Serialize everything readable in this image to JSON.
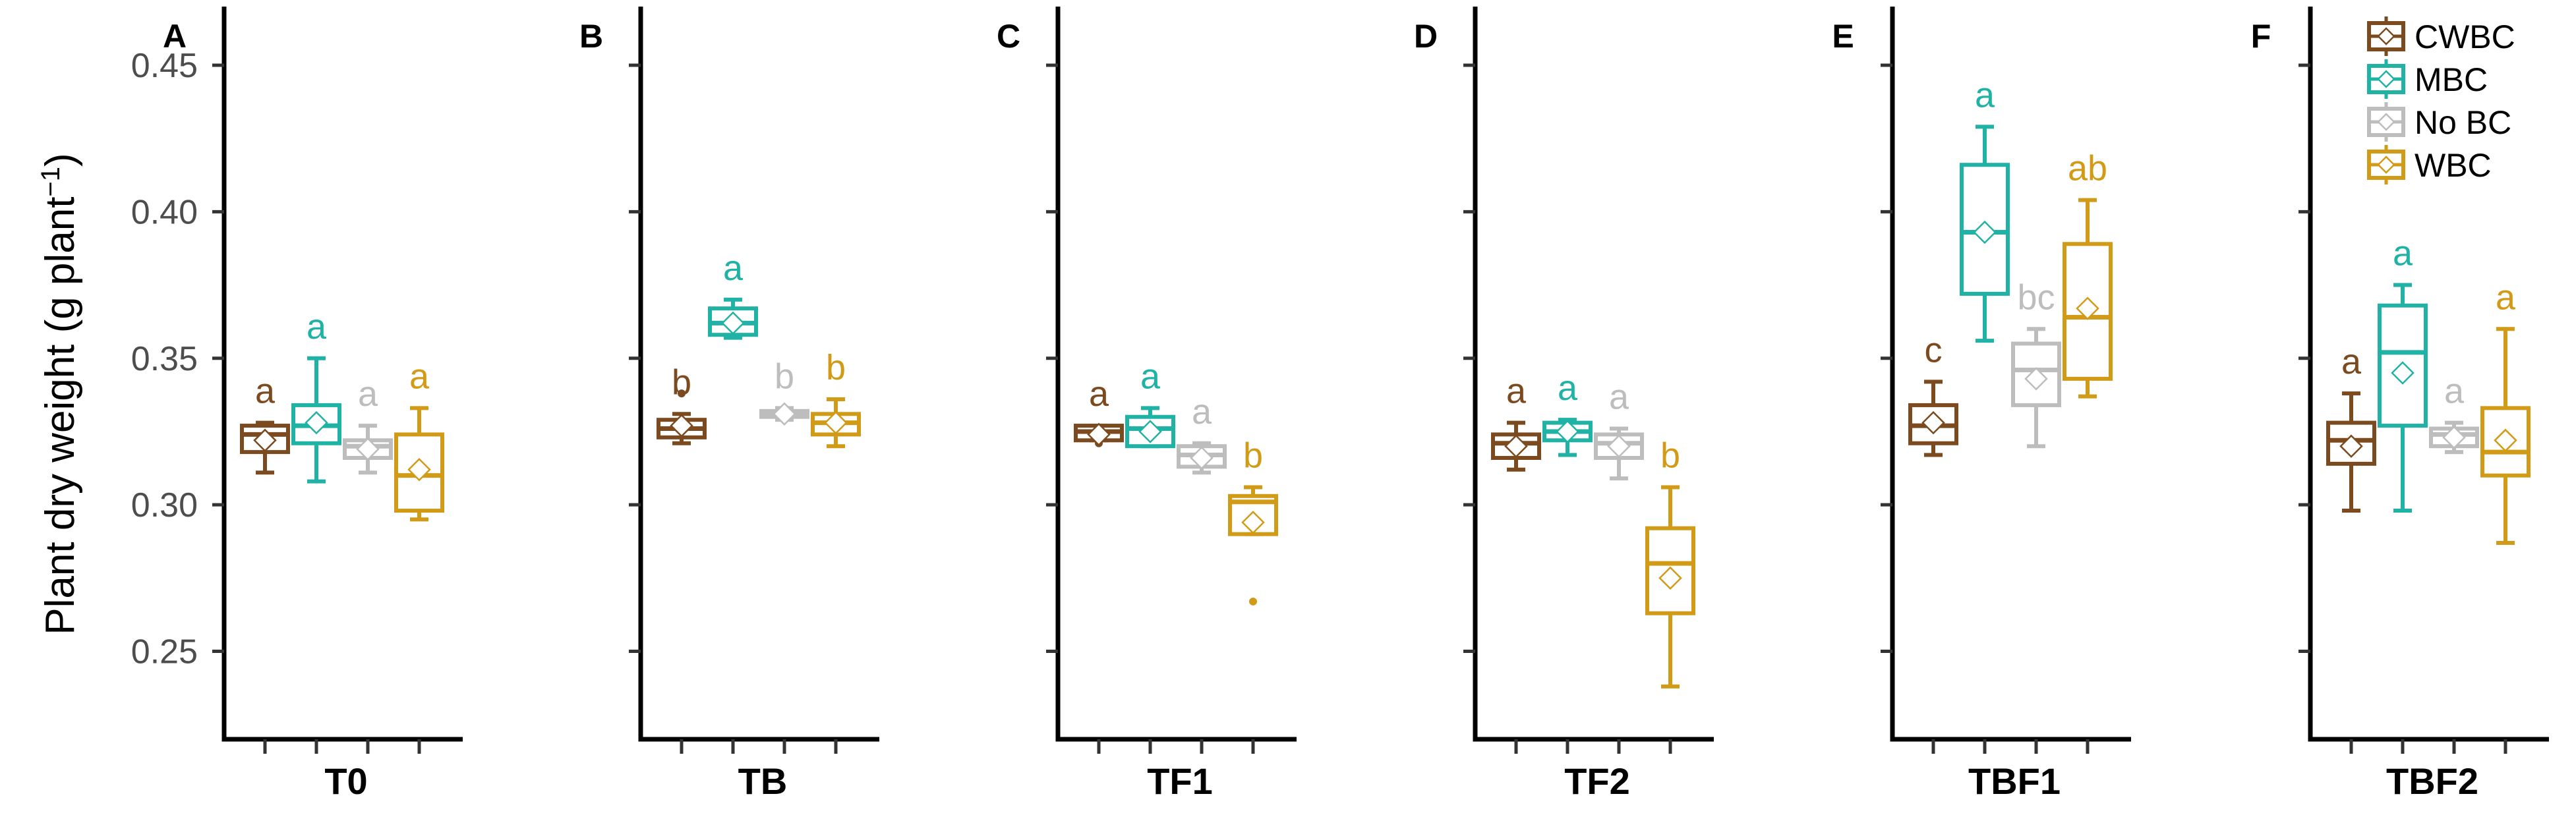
{
  "chart_data": {
    "type": "box",
    "ylabel": "Plant dry weight (g plant",
    "ylabel_exponent": "−1",
    "ylabel_close": ")",
    "ylim": [
      0.22,
      0.47
    ],
    "yticks": [
      0.25,
      0.3,
      0.35,
      0.4,
      0.45
    ],
    "ytick_labels": [
      "0.25",
      "0.30",
      "0.35",
      "0.40",
      "0.45"
    ],
    "treatments": [
      {
        "name": "CWBC",
        "color": "#7b4a1f"
      },
      {
        "name": "MBC",
        "color": "#21b2a6"
      },
      {
        "name": "No BC",
        "color": "#bdbdbd"
      },
      {
        "name": "WBC",
        "color": "#d19b17"
      }
    ],
    "panels": [
      {
        "letter": "A",
        "label": "T0",
        "boxes": [
          {
            "treatment": "CWBC",
            "min": 0.311,
            "q1": 0.318,
            "median": 0.324,
            "q3": 0.327,
            "max": 0.328,
            "mean": 0.322,
            "sig": "a",
            "outliers": []
          },
          {
            "treatment": "MBC",
            "min": 0.308,
            "q1": 0.321,
            "median": 0.327,
            "q3": 0.334,
            "max": 0.35,
            "mean": 0.328,
            "sig": "a",
            "outliers": []
          },
          {
            "treatment": "No BC",
            "min": 0.311,
            "q1": 0.316,
            "median": 0.32,
            "q3": 0.322,
            "max": 0.327,
            "mean": 0.319,
            "sig": "a",
            "outliers": []
          },
          {
            "treatment": "WBC",
            "min": 0.295,
            "q1": 0.298,
            "median": 0.31,
            "q3": 0.324,
            "max": 0.333,
            "mean": 0.312,
            "sig": "a",
            "outliers": []
          }
        ]
      },
      {
        "letter": "B",
        "label": "TB",
        "boxes": [
          {
            "treatment": "CWBC",
            "min": 0.321,
            "q1": 0.323,
            "median": 0.326,
            "q3": 0.329,
            "max": 0.331,
            "mean": 0.327,
            "sig": "b",
            "outliers": [
              0.338
            ]
          },
          {
            "treatment": "MBC",
            "min": 0.357,
            "q1": 0.358,
            "median": 0.362,
            "q3": 0.367,
            "max": 0.37,
            "mean": 0.362,
            "sig": "a",
            "outliers": []
          },
          {
            "treatment": "No BC",
            "min": 0.329,
            "q1": 0.33,
            "median": 0.331,
            "q3": 0.332,
            "max": 0.333,
            "mean": 0.331,
            "sig": "b",
            "outliers": []
          },
          {
            "treatment": "WBC",
            "min": 0.32,
            "q1": 0.324,
            "median": 0.328,
            "q3": 0.331,
            "max": 0.336,
            "mean": 0.328,
            "sig": "b",
            "outliers": []
          }
        ]
      },
      {
        "letter": "C",
        "label": "TF1",
        "boxes": [
          {
            "treatment": "CWBC",
            "min": 0.322,
            "q1": 0.322,
            "median": 0.325,
            "q3": 0.327,
            "max": 0.327,
            "mean": 0.324,
            "sig": "a",
            "outliers": [
              0.321
            ]
          },
          {
            "treatment": "MBC",
            "min": 0.32,
            "q1": 0.32,
            "median": 0.326,
            "q3": 0.33,
            "max": 0.333,
            "mean": 0.325,
            "sig": "a",
            "outliers": []
          },
          {
            "treatment": "No BC",
            "min": 0.311,
            "q1": 0.313,
            "median": 0.317,
            "q3": 0.32,
            "max": 0.321,
            "mean": 0.316,
            "sig": "a",
            "outliers": []
          },
          {
            "treatment": "WBC",
            "min": 0.29,
            "q1": 0.29,
            "median": 0.301,
            "q3": 0.303,
            "max": 0.306,
            "mean": 0.294,
            "sig": "b",
            "outliers": [
              0.267
            ]
          }
        ]
      },
      {
        "letter": "D",
        "label": "TF2",
        "boxes": [
          {
            "treatment": "CWBC",
            "min": 0.312,
            "q1": 0.316,
            "median": 0.321,
            "q3": 0.324,
            "max": 0.328,
            "mean": 0.32,
            "sig": "a",
            "outliers": []
          },
          {
            "treatment": "MBC",
            "min": 0.317,
            "q1": 0.322,
            "median": 0.325,
            "q3": 0.328,
            "max": 0.329,
            "mean": 0.325,
            "sig": "a",
            "outliers": []
          },
          {
            "treatment": "No BC",
            "min": 0.309,
            "q1": 0.316,
            "median": 0.321,
            "q3": 0.324,
            "max": 0.326,
            "mean": 0.32,
            "sig": "a",
            "outliers": []
          },
          {
            "treatment": "WBC",
            "min": 0.238,
            "q1": 0.263,
            "median": 0.28,
            "q3": 0.292,
            "max": 0.306,
            "mean": 0.275,
            "sig": "b",
            "outliers": []
          }
        ]
      },
      {
        "letter": "E",
        "label": "TBF1",
        "boxes": [
          {
            "treatment": "CWBC",
            "min": 0.317,
            "q1": 0.321,
            "median": 0.327,
            "q3": 0.334,
            "max": 0.342,
            "mean": 0.328,
            "sig": "c",
            "outliers": []
          },
          {
            "treatment": "MBC",
            "min": 0.356,
            "q1": 0.372,
            "median": 0.393,
            "q3": 0.416,
            "max": 0.429,
            "mean": 0.393,
            "sig": "a",
            "outliers": []
          },
          {
            "treatment": "No BC",
            "min": 0.32,
            "q1": 0.334,
            "median": 0.346,
            "q3": 0.355,
            "max": 0.36,
            "mean": 0.343,
            "sig": "bc",
            "outliers": []
          },
          {
            "treatment": "WBC",
            "min": 0.337,
            "q1": 0.343,
            "median": 0.364,
            "q3": 0.389,
            "max": 0.404,
            "mean": 0.367,
            "sig": "ab",
            "outliers": []
          }
        ]
      },
      {
        "letter": "F",
        "label": "TBF2",
        "boxes": [
          {
            "treatment": "CWBC",
            "min": 0.298,
            "q1": 0.314,
            "median": 0.322,
            "q3": 0.328,
            "max": 0.338,
            "mean": 0.32,
            "sig": "a",
            "outliers": []
          },
          {
            "treatment": "MBC",
            "min": 0.298,
            "q1": 0.327,
            "median": 0.352,
            "q3": 0.368,
            "max": 0.375,
            "mean": 0.345,
            "sig": "a",
            "outliers": []
          },
          {
            "treatment": "No BC",
            "min": 0.318,
            "q1": 0.32,
            "median": 0.324,
            "q3": 0.326,
            "max": 0.328,
            "mean": 0.323,
            "sig": "a",
            "outliers": []
          },
          {
            "treatment": "WBC",
            "min": 0.287,
            "q1": 0.31,
            "median": 0.318,
            "q3": 0.333,
            "max": 0.36,
            "mean": 0.322,
            "sig": "a",
            "outliers": []
          }
        ]
      }
    ]
  }
}
